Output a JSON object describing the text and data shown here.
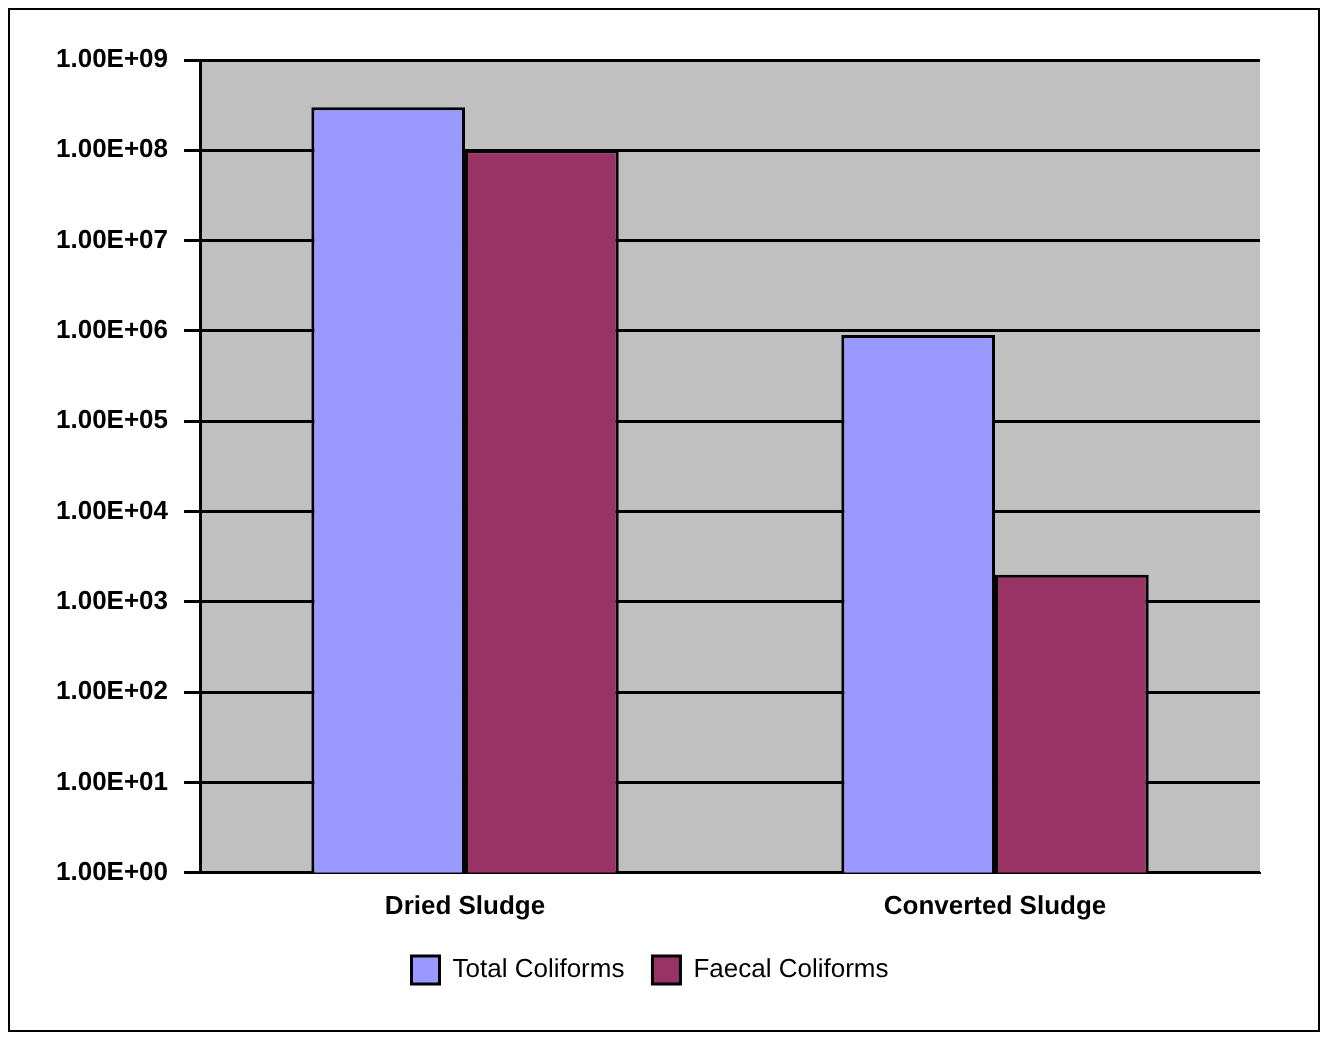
{
  "chart_data": {
    "type": "bar",
    "categories": [
      "Dried Sludge",
      "Converted Sludge"
    ],
    "series": [
      {
        "name": "Total Coliforms",
        "color": "#9999ff",
        "values": [
          300000000,
          900000
        ]
      },
      {
        "name": "Faecal Coliforms",
        "color": "#993366",
        "values": [
          100000000,
          2000
        ]
      }
    ],
    "log": "y",
    "ylim": [
      1,
      1000000000
    ],
    "yticks": [
      {
        "value": 1,
        "label": "1.00E+00"
      },
      {
        "value": 10,
        "label": "1.00E+01"
      },
      {
        "value": 100,
        "label": "1.00E+02"
      },
      {
        "value": 1000,
        "label": "1.00E+03"
      },
      {
        "value": 10000,
        "label": "1.00E+04"
      },
      {
        "value": 100000,
        "label": "1.00E+05"
      },
      {
        "value": 1000000,
        "label": "1.00E+06"
      },
      {
        "value": 10000000,
        "label": "1.00E+07"
      },
      {
        "value": 100000000,
        "label": "1.00E+08"
      },
      {
        "value": 1000000000,
        "label": "1.00E+09"
      }
    ],
    "grid": "y",
    "legend": "bottom"
  }
}
